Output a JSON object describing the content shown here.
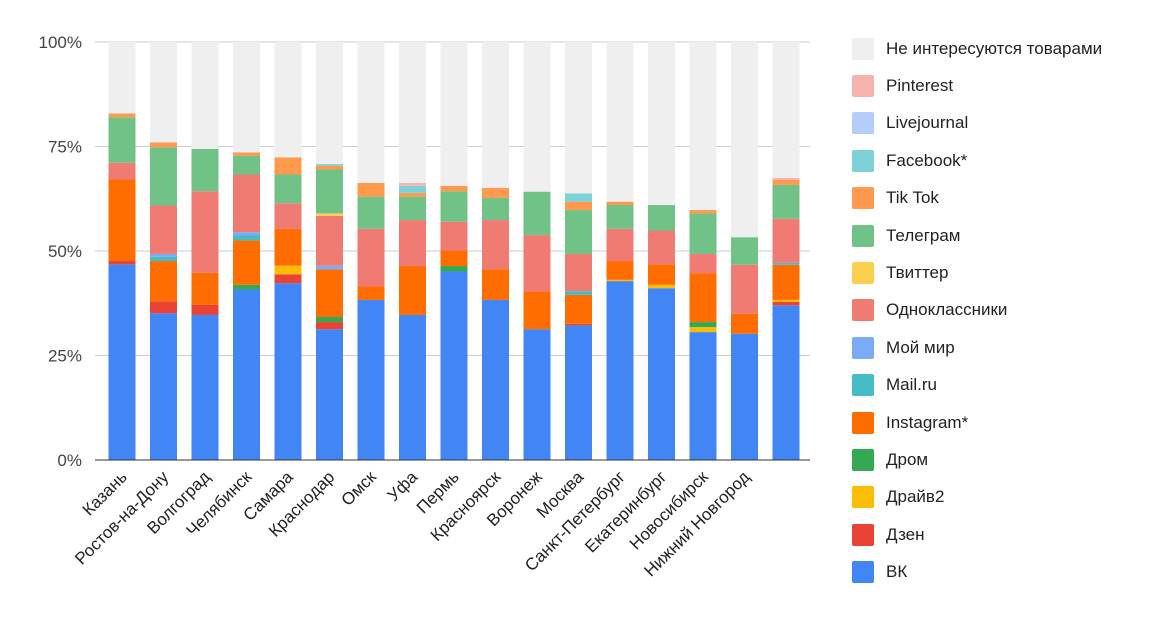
{
  "chart_data": {
    "type": "bar",
    "stacked": true,
    "title": "",
    "xlabel": "",
    "ylabel": "",
    "ylim": [
      0,
      100
    ],
    "y_ticks": [
      "0%",
      "25%",
      "50%",
      "75%",
      "100%"
    ],
    "y_tick_values": [
      0,
      25,
      50,
      75,
      100
    ],
    "grid": true,
    "legend_position": "right",
    "categories": [
      "Казань",
      "Ростов-на-Дону",
      "Волгоград",
      "Челябинск",
      "Самара",
      "Краснодар",
      "Омск",
      "Уфа",
      "Пермь",
      "Красноярск",
      "Воронеж",
      "Москва",
      "Санкт-Петербург",
      "Екатеринбург",
      "Новосибирск",
      "Нижний Новгород",
      ""
    ],
    "series": [
      {
        "name": "ВК",
        "color": "#4285f4",
        "values": [
          46.8,
          35.1,
          34.7,
          40.8,
          42.3,
          31.3,
          38.3,
          34.7,
          45.1,
          38.3,
          31.3,
          32.2,
          42.8,
          41.1,
          30.6,
          30.2,
          37.0
        ]
      },
      {
        "name": "Дзен",
        "color": "#ea4335",
        "values": [
          0.8,
          2.8,
          2.4,
          0,
          2.1,
          1.7,
          0,
          0,
          0,
          0,
          0,
          0.4,
          0,
          0,
          0,
          0,
          0.8
        ]
      },
      {
        "name": "Драйв2",
        "color": "#fbbc04",
        "values": [
          0,
          0,
          0,
          0,
          2.1,
          0,
          0,
          0,
          0,
          0,
          0,
          0,
          0.3,
          0.8,
          1.2,
          0,
          0.5
        ]
      },
      {
        "name": "Дром",
        "color": "#34a853",
        "values": [
          0,
          0,
          0,
          1.1,
          0,
          1.2,
          0,
          0,
          1.3,
          0,
          0,
          0,
          0,
          0,
          1.2,
          0,
          0
        ]
      },
      {
        "name": "Instagram*",
        "color": "#ff6d01",
        "values": [
          19.5,
          9.7,
          7.7,
          10.6,
          8.8,
          11.4,
          3.2,
          11.7,
          3.7,
          7.3,
          9.0,
          6.9,
          4.5,
          4.9,
          11.7,
          4.8,
          8.4
        ]
      },
      {
        "name": "Mail.ru",
        "color": "#46bdc6",
        "values": [
          0,
          1.0,
          0,
          1.2,
          0,
          0,
          0,
          0,
          0,
          0,
          0,
          0.9,
          0,
          0,
          0,
          0,
          0.5
        ]
      },
      {
        "name": "Мой мир",
        "color": "#7baaf7",
        "values": [
          0,
          0.7,
          0,
          0.8,
          0,
          0.9,
          0,
          0,
          0,
          0,
          0,
          0,
          0,
          0,
          0,
          0,
          0
        ]
      },
      {
        "name": "Одноклассники",
        "color": "#f07b72",
        "values": [
          4.0,
          11.6,
          19.5,
          13.8,
          6.1,
          11.9,
          13.8,
          11.0,
          6.9,
          11.8,
          13.5,
          8.9,
          7.7,
          8.1,
          4.6,
          11.7,
          10.5
        ]
      },
      {
        "name": "Твиттер",
        "color": "#fcd04f",
        "values": [
          0,
          0,
          0,
          0,
          0,
          0.6,
          0,
          0,
          0,
          0,
          0,
          0,
          0,
          0,
          0,
          0,
          0
        ]
      },
      {
        "name": "Телеграм",
        "color": "#71c287",
        "values": [
          10.9,
          13.9,
          10.1,
          4.5,
          6.9,
          10.5,
          7.7,
          5.6,
          7.3,
          5.3,
          10.4,
          10.5,
          5.7,
          6.1,
          9.7,
          6.6,
          8.1
        ]
      },
      {
        "name": "Tik Tok",
        "color": "#ff994d",
        "values": [
          0.9,
          1.2,
          0,
          0.8,
          4.1,
          0.9,
          3.3,
          0.9,
          1.3,
          2.4,
          0,
          2.0,
          0.8,
          0,
          0.8,
          0,
          1.2
        ]
      },
      {
        "name": "Facebook*",
        "color": "#7ed1d7",
        "values": [
          0,
          0,
          0,
          0,
          0,
          0.4,
          0,
          1.7,
          0,
          0,
          0,
          2.0,
          0,
          0,
          0,
          0,
          0
        ]
      },
      {
        "name": "Livejournal",
        "color": "#b3cefb",
        "values": [
          0,
          0,
          0,
          0,
          0,
          0,
          0,
          0,
          0,
          0,
          0,
          0,
          0,
          0,
          0,
          0,
          0
        ]
      },
      {
        "name": "Pinterest",
        "color": "#f7b4ae",
        "values": [
          0,
          0,
          0,
          0,
          0,
          0,
          0,
          0.7,
          0,
          0,
          0,
          0,
          0,
          0,
          0,
          0,
          0.5
        ]
      },
      {
        "name": "Не интересуются товарами",
        "color": "#efefef",
        "values": [
          17.1,
          24.0,
          25.6,
          26.4,
          27.6,
          29.2,
          33.7,
          33.7,
          34.4,
          34.9,
          35.8,
          36.2,
          38.2,
          39.0,
          40.2,
          46.7,
          32.5
        ]
      }
    ]
  }
}
